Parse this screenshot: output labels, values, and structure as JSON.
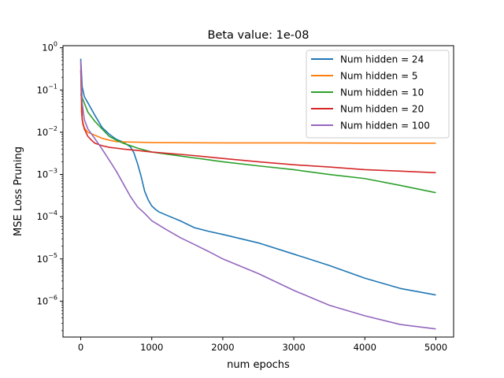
{
  "chart_data": {
    "type": "line",
    "title": "Beta value: 1e-08",
    "xlabel": "num epochs",
    "ylabel": "MSE Loss Pruning",
    "xlim": [
      -250,
      5250
    ],
    "ylim_log10": [
      -6.85,
      0.05
    ],
    "y_scale": "log",
    "grid": false,
    "legend_position": "top-right",
    "x_ticks": [
      0,
      1000,
      2000,
      3000,
      4000,
      5000
    ],
    "x_tick_labels": [
      "0",
      "1000",
      "2000",
      "3000",
      "4000",
      "5000"
    ],
    "y_ticks_log10": [
      0,
      -1,
      -2,
      -3,
      -4,
      -5,
      -6
    ],
    "y_tick_labels": [
      {
        "base": "10",
        "exp": "0"
      },
      {
        "base": "10",
        "exp": "−1"
      },
      {
        "base": "10",
        "exp": "−2"
      },
      {
        "base": "10",
        "exp": "−3"
      },
      {
        "base": "10",
        "exp": "−4"
      },
      {
        "base": "10",
        "exp": "−5"
      },
      {
        "base": "10",
        "exp": "−6"
      }
    ],
    "series": [
      {
        "name": "Num hidden = 24",
        "color": "#1f77b4",
        "x": [
          0,
          20,
          50,
          100,
          200,
          300,
          400,
          500,
          600,
          700,
          750,
          800,
          850,
          900,
          950,
          1000,
          1050,
          1100,
          1200,
          1400,
          1600,
          1800,
          2000,
          2500,
          3000,
          3500,
          4000,
          4500,
          5000
        ],
        "y": [
          0.55,
          0.12,
          0.07,
          0.05,
          0.025,
          0.013,
          0.009,
          0.0068,
          0.0058,
          0.0045,
          0.0032,
          0.0018,
          0.0009,
          0.0004,
          0.00025,
          0.00018,
          0.00015,
          0.00013,
          0.00011,
          8e-05,
          5.5e-05,
          4.5e-05,
          3.8e-05,
          2.4e-05,
          1.3e-05,
          7e-06,
          3.5e-06,
          2e-06,
          1.4e-06
        ]
      },
      {
        "name": "Num hidden = 5",
        "color": "#ff7f0e",
        "x": [
          0,
          10,
          30,
          60,
          100,
          200,
          300,
          400,
          500,
          600,
          800,
          1000,
          2000,
          3000,
          4000,
          5000
        ],
        "y": [
          0.45,
          0.03,
          0.015,
          0.012,
          0.01,
          0.0085,
          0.0072,
          0.0065,
          0.006,
          0.0059,
          0.0058,
          0.0057,
          0.0056,
          0.0056,
          0.0055,
          0.0055
        ]
      },
      {
        "name": "Num hidden = 10",
        "color": "#2ca02c",
        "x": [
          0,
          30,
          100,
          200,
          300,
          400,
          500,
          600,
          800,
          1000,
          1500,
          2000,
          2500,
          3000,
          3500,
          4000,
          4500,
          5000
        ],
        "y": [
          0.08,
          0.06,
          0.03,
          0.018,
          0.012,
          0.008,
          0.0065,
          0.0055,
          0.0042,
          0.0034,
          0.0026,
          0.002,
          0.0016,
          0.0013,
          0.001,
          0.0008,
          0.00055,
          0.00037
        ]
      },
      {
        "name": "Num hidden = 20",
        "color": "#d62728",
        "x": [
          0,
          20,
          50,
          100,
          150,
          200,
          300,
          400,
          500,
          600,
          800,
          1000,
          1500,
          2000,
          2500,
          3000,
          3500,
          4000,
          4500,
          5000
        ],
        "y": [
          0.3,
          0.02,
          0.012,
          0.008,
          0.0065,
          0.0055,
          0.0048,
          0.0044,
          0.0042,
          0.004,
          0.0037,
          0.0034,
          0.0029,
          0.0024,
          0.002,
          0.0017,
          0.0015,
          0.0013,
          0.0012,
          0.0011
        ]
      },
      {
        "name": "Num hidden = 100",
        "color": "#9467bd",
        "x": [
          0,
          20,
          50,
          100,
          200,
          300,
          400,
          500,
          600,
          700,
          800,
          900,
          1000,
          1200,
          1400,
          1600,
          1800,
          2000,
          2500,
          3000,
          3500,
          4000,
          4500,
          5000
        ],
        "y": [
          0.5,
          0.05,
          0.02,
          0.012,
          0.007,
          0.004,
          0.0022,
          0.0012,
          0.0006,
          0.0003,
          0.00017,
          0.00012,
          8e-05,
          5e-05,
          3.2e-05,
          2.2e-05,
          1.5e-05,
          1e-05,
          4.5e-06,
          1.8e-06,
          8e-07,
          4.5e-07,
          2.8e-07,
          2.2e-07
        ]
      }
    ]
  }
}
